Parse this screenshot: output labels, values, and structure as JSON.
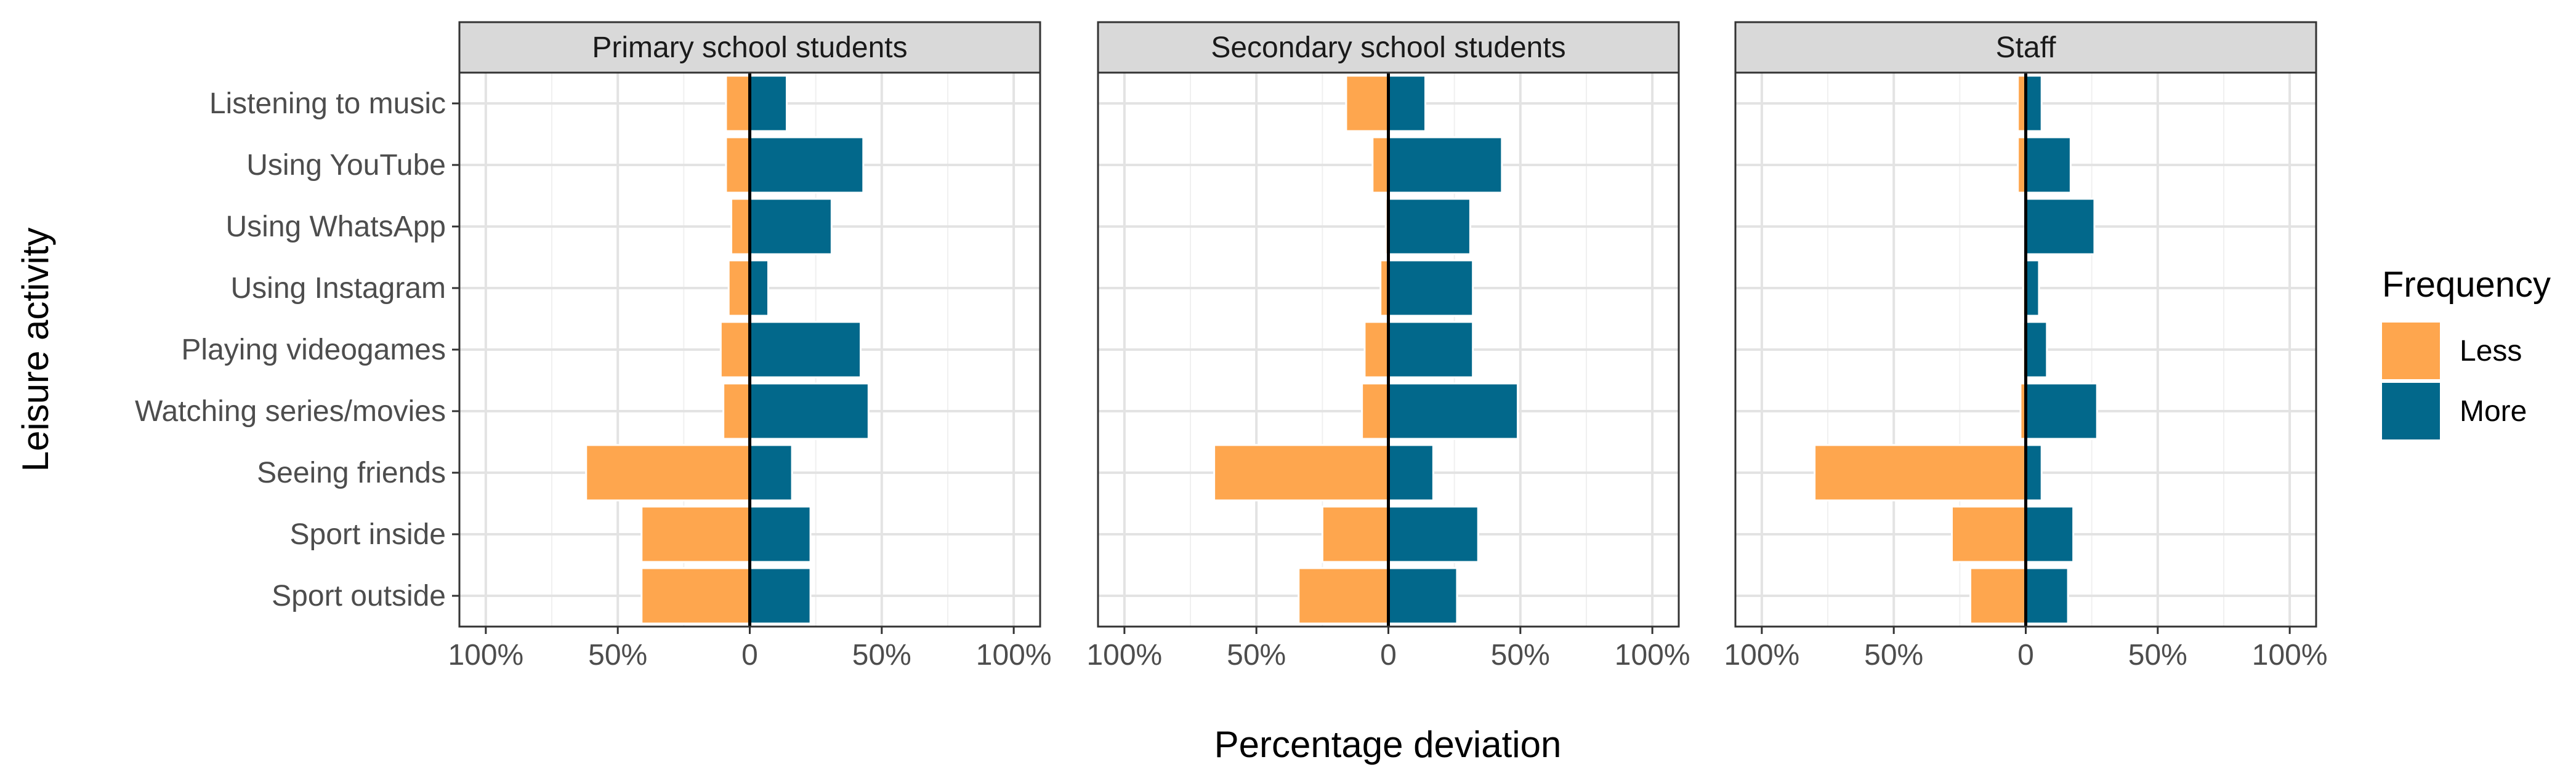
{
  "chart_data": {
    "type": "bar",
    "orientation": "horizontal",
    "xlabel": "Percentage deviation",
    "ylabel": "Leisure activity",
    "xlim": [
      -110,
      110
    ],
    "x_ticks": [
      -100,
      -50,
      0,
      50,
      100
    ],
    "x_tick_labels": [
      "100%",
      "50%",
      "0",
      "50%",
      "100%"
    ],
    "categories": [
      "Listening to music",
      "Using YouTube",
      "Using WhatsApp",
      "Using Instagram",
      "Playing videogames",
      "Watching series/movies",
      "Seeing friends",
      "Sport inside",
      "Sport outside"
    ],
    "legend": {
      "title": "Frequency",
      "entries": [
        {
          "name": "Less",
          "color": "#FEA64E"
        },
        {
          "name": "More",
          "color": "#02688B"
        }
      ]
    },
    "panels": [
      {
        "title": "Primary school students",
        "series": [
          {
            "name": "Less",
            "values": [
              -9,
              -9,
              -7,
              -8,
              -11,
              -10,
              -62,
              -41,
              -41
            ]
          },
          {
            "name": "More",
            "values": [
              14,
              43,
              31,
              7,
              42,
              45,
              16,
              23,
              23
            ]
          }
        ]
      },
      {
        "title": "Secondary school students",
        "series": [
          {
            "name": "Less",
            "values": [
              -16,
              -6,
              -1,
              -3,
              -9,
              -10,
              -66,
              -25,
              -34
            ]
          },
          {
            "name": "More",
            "values": [
              14,
              43,
              31,
              32,
              32,
              49,
              17,
              34,
              26
            ]
          }
        ]
      },
      {
        "title": "Staff",
        "series": [
          {
            "name": "Less",
            "values": [
              -3,
              -3,
              0,
              -1,
              -1,
              -2,
              -80,
              -28,
              -21
            ]
          },
          {
            "name": "More",
            "values": [
              6,
              17,
              26,
              5,
              8,
              27,
              6,
              18,
              16
            ]
          }
        ]
      }
    ]
  }
}
